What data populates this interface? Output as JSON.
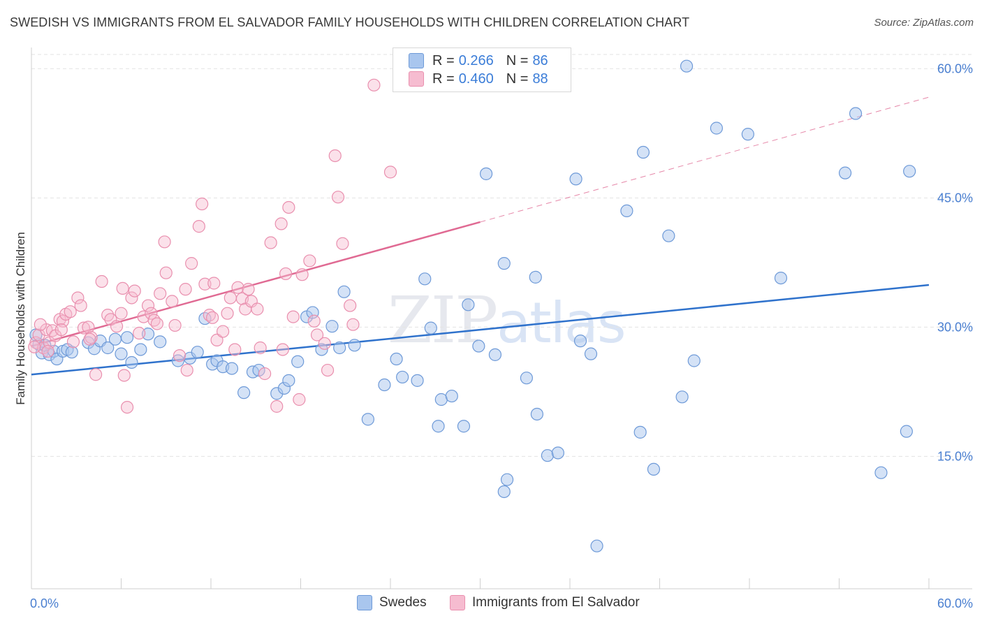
{
  "title": "SWEDISH VS IMMIGRANTS FROM EL SALVADOR FAMILY HOUSEHOLDS WITH CHILDREN CORRELATION CHART",
  "source": "Source: ZipAtlas.com",
  "watermark": {
    "zip": "ZIP",
    "atlas": "atlas"
  },
  "legend": {
    "rows": [
      {
        "r_label": "R =",
        "r_value": "0.266",
        "n_label": "N =",
        "n_value": "86"
      },
      {
        "r_label": "R =",
        "r_value": "0.460",
        "n_label": "N =",
        "n_value": "88"
      }
    ]
  },
  "bottom_legend": [
    "Swedes",
    "Immigrants from El Salvador"
  ],
  "colors": {
    "swedes_fill": "#a9c6ee",
    "swedes_stroke": "#6e9ad8",
    "swedes_line": "#2f72cc",
    "salv_fill": "#f6bcd0",
    "salv_stroke": "#e98fae",
    "salv_line": "#e06a93",
    "grid": "#e3e3e3",
    "tick_text": "#4a7fd0"
  },
  "chart_data": {
    "type": "scatter",
    "title": "SWEDISH VS IMMIGRANTS FROM EL SALVADOR FAMILY HOUSEHOLDS WITH CHILDREN CORRELATION CHART",
    "xlabel": "",
    "ylabel": "Family Households with Children",
    "xlim": [
      0,
      60
    ],
    "ylim": [
      0,
      62
    ],
    "x_tick_labels": [
      "0.0%",
      "60.0%"
    ],
    "y_ticks": [
      15,
      30,
      45,
      60
    ],
    "y_tick_labels": [
      "15.0%",
      "30.0%",
      "45.0%",
      "60.0%"
    ],
    "grid": true,
    "legend_position": "top-center",
    "series": [
      {
        "name": "Swedes",
        "r": 0.266,
        "n": 86,
        "trend": {
          "x0": 0,
          "y0": 24.5,
          "x1": 60,
          "y1": 34.9
        },
        "points": [
          [
            0.5,
            28
          ],
          [
            0.7,
            27
          ],
          [
            1.2,
            26.8
          ],
          [
            1.5,
            27.2
          ],
          [
            1.7,
            26.3
          ],
          [
            2.1,
            27.2
          ],
          [
            2.4,
            27.4
          ],
          [
            2.7,
            27.1
          ],
          [
            3.8,
            28.2
          ],
          [
            4.2,
            27.5
          ],
          [
            4.6,
            28.4
          ],
          [
            5.1,
            27.6
          ],
          [
            5.6,
            28.6
          ],
          [
            6,
            26.9
          ],
          [
            6.7,
            25.9
          ],
          [
            7.3,
            27.4
          ],
          [
            7.8,
            29.2
          ],
          [
            8.6,
            28.3
          ],
          [
            9.8,
            26.1
          ],
          [
            10.6,
            26.4
          ],
          [
            11.1,
            27.1
          ],
          [
            11.6,
            31
          ],
          [
            12.1,
            25.7
          ],
          [
            12.4,
            26.1
          ],
          [
            12.8,
            25.4
          ],
          [
            13.4,
            25.2
          ],
          [
            14.2,
            22.4
          ],
          [
            14.8,
            24.8
          ],
          [
            15.2,
            25
          ],
          [
            16.4,
            22.3
          ],
          [
            16.9,
            22.9
          ],
          [
            17.2,
            23.8
          ],
          [
            17.8,
            26
          ],
          [
            18.4,
            31.2
          ],
          [
            18.8,
            31.7
          ],
          [
            19.4,
            27.4
          ],
          [
            20.1,
            30.1
          ],
          [
            20.6,
            27.6
          ],
          [
            20.9,
            34.1
          ],
          [
            21.6,
            27.9
          ],
          [
            22.5,
            19.3
          ],
          [
            23.6,
            23.3
          ],
          [
            24.4,
            26.3
          ],
          [
            24.8,
            24.2
          ],
          [
            25.8,
            23.8
          ],
          [
            26.3,
            35.6
          ],
          [
            26.7,
            29.9
          ],
          [
            27.2,
            18.5
          ],
          [
            27.4,
            21.6
          ],
          [
            28.1,
            22.0
          ],
          [
            28.9,
            18.5
          ],
          [
            29.2,
            32.6
          ],
          [
            29.9,
            27.8
          ],
          [
            30.4,
            47.8
          ],
          [
            31.0,
            26.8
          ],
          [
            31.6,
            37.4
          ],
          [
            33.1,
            24.1
          ],
          [
            33.7,
            35.8
          ],
          [
            33.8,
            19.9
          ],
          [
            34.5,
            15.1
          ],
          [
            35.2,
            15.4
          ],
          [
            31.8,
            12.3
          ],
          [
            31.6,
            10.9
          ],
          [
            36.4,
            47.2
          ],
          [
            36.7,
            28.4
          ],
          [
            37.4,
            26.9
          ],
          [
            37.8,
            4.6
          ],
          [
            39.8,
            43.5
          ],
          [
            40.7,
            17.8
          ],
          [
            40.9,
            50.3
          ],
          [
            41.6,
            13.5
          ],
          [
            42.6,
            40.6
          ],
          [
            43.5,
            21.9
          ],
          [
            44.3,
            26.1
          ],
          [
            43.8,
            60.3
          ],
          [
            45.8,
            53.1
          ],
          [
            47.9,
            52.4
          ],
          [
            50.1,
            35.7
          ],
          [
            54.4,
            47.9
          ],
          [
            55.1,
            54.8
          ],
          [
            56.8,
            13.1
          ],
          [
            58.5,
            17.9
          ],
          [
            58.7,
            48.1
          ],
          [
            0.3,
            29.1
          ],
          [
            0.9,
            27.9
          ],
          [
            6.4,
            28.8
          ]
        ]
      },
      {
        "name": "Immigrants from El Salvador",
        "r": 0.46,
        "n": 88,
        "trend": {
          "x0": 0,
          "y0": 27.8,
          "x1": 30,
          "y1": 42.2
        },
        "trend_dashed": {
          "x0": 30,
          "y0": 42.2,
          "x1": 60,
          "y1": 56.7
        },
        "points": [
          [
            0.3,
            28.2
          ],
          [
            0.5,
            29.1
          ],
          [
            0.8,
            27.6
          ],
          [
            1.0,
            29.7
          ],
          [
            1.2,
            28.2
          ],
          [
            1.4,
            29.6
          ],
          [
            1.6,
            29.0
          ],
          [
            1.9,
            30.9
          ],
          [
            2.1,
            30.7
          ],
          [
            2.3,
            31.5
          ],
          [
            2.6,
            31.8
          ],
          [
            2.8,
            28.3
          ],
          [
            3.1,
            33.4
          ],
          [
            3.3,
            32.5
          ],
          [
            3.5,
            29.9
          ],
          [
            3.8,
            30.0
          ],
          [
            4.0,
            28.8
          ],
          [
            4.3,
            24.5
          ],
          [
            4.7,
            35.3
          ],
          [
            5.1,
            31.4
          ],
          [
            5.3,
            30.9
          ],
          [
            5.7,
            30.1
          ],
          [
            6.0,
            31.6
          ],
          [
            6.2,
            24.4
          ],
          [
            6.4,
            20.7
          ],
          [
            6.7,
            33.4
          ],
          [
            6.9,
            34.2
          ],
          [
            7.2,
            29.3
          ],
          [
            7.5,
            31.2
          ],
          [
            7.8,
            32.5
          ],
          [
            8.0,
            31.6
          ],
          [
            8.2,
            30.8
          ],
          [
            8.6,
            33.9
          ],
          [
            8.9,
            39.9
          ],
          [
            9.0,
            36.3
          ],
          [
            9.4,
            33.0
          ],
          [
            9.6,
            30.2
          ],
          [
            9.9,
            26.7
          ],
          [
            10.3,
            34.4
          ],
          [
            10.4,
            25.0
          ],
          [
            10.7,
            37.4
          ],
          [
            11.2,
            41.7
          ],
          [
            11.4,
            44.3
          ],
          [
            11.6,
            35.0
          ],
          [
            11.9,
            31.4
          ],
          [
            12.2,
            35.1
          ],
          [
            12.4,
            28.5
          ],
          [
            12.8,
            29.5
          ],
          [
            13.1,
            31.6
          ],
          [
            13.3,
            33.4
          ],
          [
            13.6,
            27.4
          ],
          [
            13.8,
            34.6
          ],
          [
            14.1,
            33.3
          ],
          [
            14.3,
            32.1
          ],
          [
            14.7,
            33.0
          ],
          [
            15.1,
            32.1
          ],
          [
            15.3,
            27.6
          ],
          [
            15.6,
            24.6
          ],
          [
            16.0,
            39.8
          ],
          [
            16.4,
            20.8
          ],
          [
            16.7,
            42.0
          ],
          [
            16.8,
            27.4
          ],
          [
            17.2,
            43.9
          ],
          [
            17.5,
            31.2
          ],
          [
            17.9,
            21.6
          ],
          [
            18.1,
            36.1
          ],
          [
            18.6,
            37.7
          ],
          [
            19.1,
            29.1
          ],
          [
            19.6,
            28.1
          ],
          [
            19.8,
            25.0
          ],
          [
            20.3,
            49.9
          ],
          [
            20.5,
            45.1
          ],
          [
            20.8,
            39.7
          ],
          [
            21.3,
            32.5
          ],
          [
            21.5,
            30.3
          ],
          [
            22.9,
            58.1
          ],
          [
            24.0,
            48.0
          ],
          [
            0.2,
            27.7
          ],
          [
            0.6,
            30.3
          ],
          [
            1.1,
            27.2
          ],
          [
            2.0,
            29.7
          ],
          [
            3.9,
            28.6
          ],
          [
            6.1,
            34.5
          ],
          [
            8.4,
            30.4
          ],
          [
            12.1,
            31.1
          ],
          [
            14.5,
            34.4
          ],
          [
            17.0,
            36.2
          ],
          [
            18.9,
            30.7
          ]
        ]
      }
    ]
  }
}
